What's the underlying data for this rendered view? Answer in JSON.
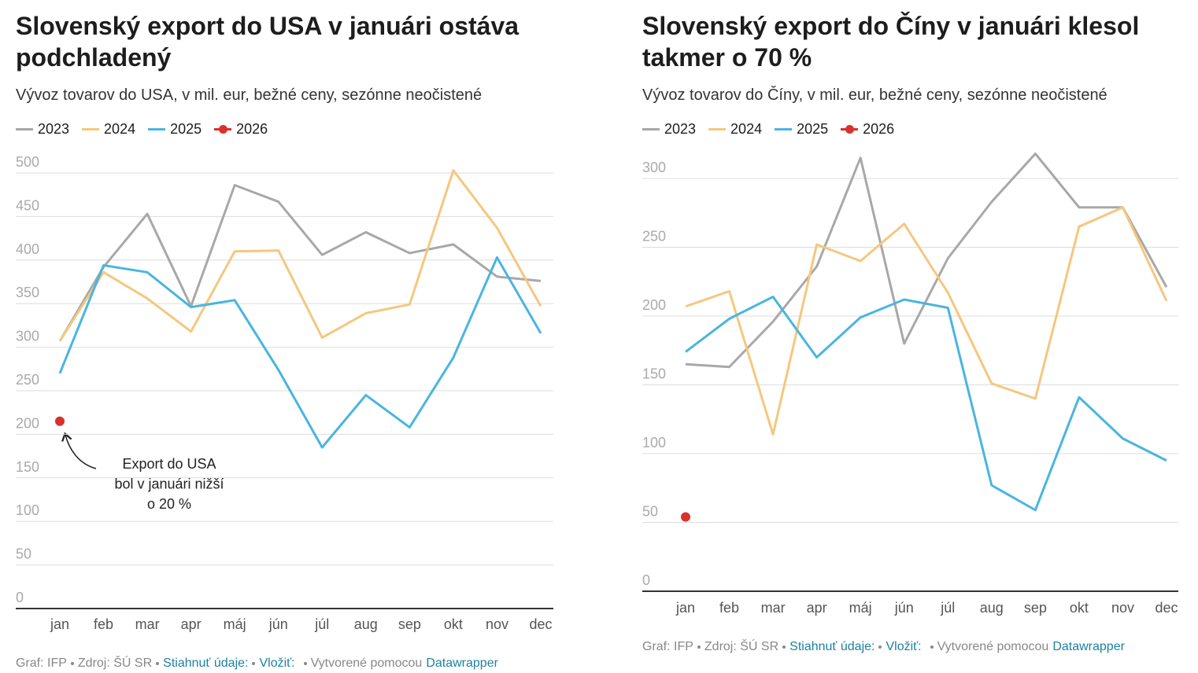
{
  "chart_data": [
    {
      "type": "line",
      "title": "Slovenský export do USA v januári ostáva podchladený",
      "subtitle": "Vývoz tovarov do USA, v mil. eur, bežné ceny, sezónne neočistené",
      "categories": [
        "jan",
        "feb",
        "mar",
        "apr",
        "máj",
        "jún",
        "júl",
        "aug",
        "sep",
        "okt",
        "nov",
        "dec"
      ],
      "series": [
        {
          "name": "2023",
          "color": "#a8a8a8",
          "values": [
            307,
            392,
            453,
            347,
            486,
            467,
            406,
            432,
            408,
            418,
            381,
            376
          ]
        },
        {
          "name": "2024",
          "color": "#f5c77e",
          "values": [
            307,
            386,
            356,
            318,
            410,
            411,
            311,
            339,
            349,
            503,
            437,
            347
          ]
        },
        {
          "name": "2025",
          "color": "#4ab5e0",
          "values": [
            270,
            394,
            386,
            346,
            354,
            274,
            185,
            245,
            208,
            288,
            403,
            316
          ]
        },
        {
          "name": "2026",
          "color": "#d9312b",
          "values": [
            215,
            null,
            null,
            null,
            null,
            null,
            null,
            null,
            null,
            null,
            null,
            null
          ]
        }
      ],
      "ylim": [
        0,
        500
      ],
      "yticks": [
        0,
        50,
        100,
        150,
        200,
        250,
        300,
        350,
        400,
        450,
        500
      ],
      "grid": true,
      "annotation": [
        "Export do USA",
        "bol v januári nižší",
        "o 20 %"
      ],
      "footer": {
        "credit": "Graf: IFP",
        "source": "Zdroj: ŠÚ SR",
        "download": "Stiahnuť údaje:",
        "embed": "Vložiť:",
        "made_with": "Vytvorené pomocou",
        "tool": "Datawrapper"
      }
    },
    {
      "type": "line",
      "title": "Slovenský export do Číny v januári klesol takmer  o 70 %",
      "subtitle": "Vývoz tovarov do Číny, v mil. eur, bežné ceny, sezónne neočistené",
      "categories": [
        "jan",
        "feb",
        "mar",
        "apr",
        "máj",
        "jún",
        "júl",
        "aug",
        "sep",
        "okt",
        "nov",
        "dec"
      ],
      "series": [
        {
          "name": "2023",
          "color": "#a8a8a8",
          "values": [
            165,
            163,
            196,
            236,
            315,
            180,
            242,
            283,
            318,
            279,
            279,
            221
          ]
        },
        {
          "name": "2024",
          "color": "#f5c77e",
          "values": [
            207,
            218,
            114,
            252,
            240,
            267,
            217,
            151,
            140,
            265,
            279,
            211
          ]
        },
        {
          "name": "2025",
          "color": "#4ab5e0",
          "values": [
            174,
            198,
            214,
            170,
            199,
            212,
            206,
            77,
            59,
            141,
            111,
            95
          ]
        },
        {
          "name": "2026",
          "color": "#d9312b",
          "values": [
            54,
            null,
            null,
            null,
            null,
            null,
            null,
            null,
            null,
            null,
            null,
            null
          ]
        }
      ],
      "ylim": [
        0,
        300
      ],
      "yticks": [
        0,
        50,
        100,
        150,
        200,
        250,
        300
      ],
      "grid": true,
      "footer": {
        "credit": "Graf: IFP",
        "source": "Zdroj: ŠÚ SR",
        "download": "Stiahnuť údaje:",
        "embed": "Vložiť:",
        "made_with": "Vytvorené pomocou",
        "tool": "Datawrapper"
      }
    }
  ]
}
